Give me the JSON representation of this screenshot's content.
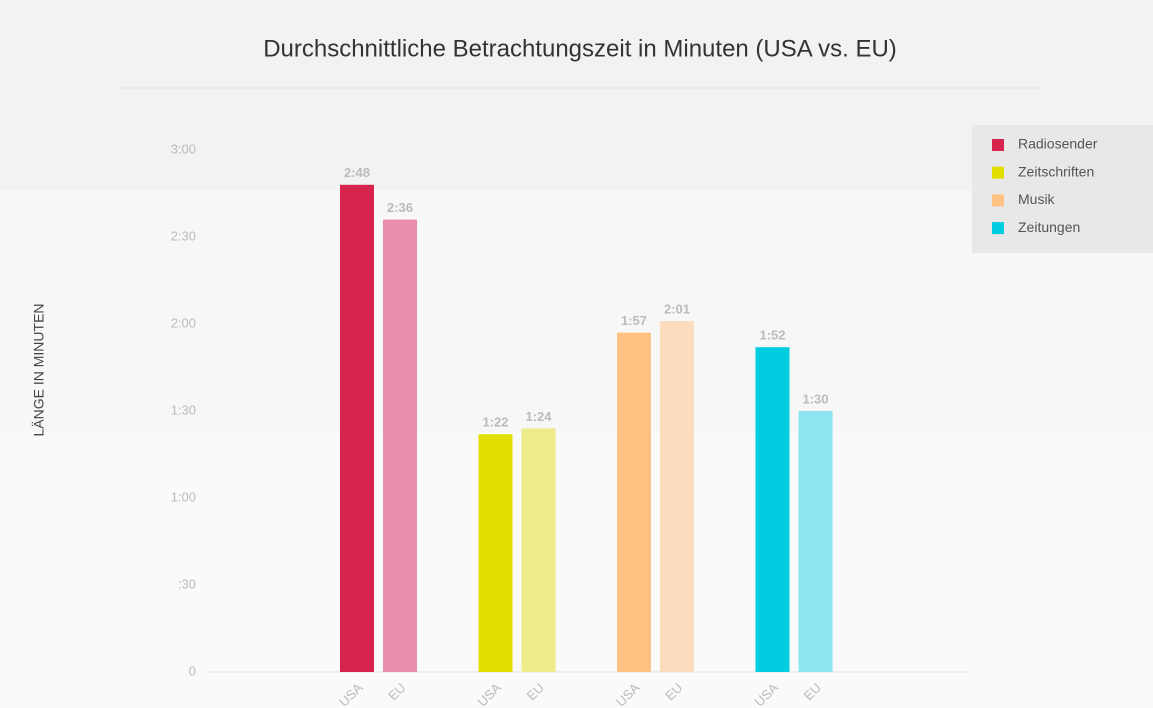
{
  "chart_data": {
    "type": "grouped_bar",
    "title": "Durchschnittliche Betrachtungszeit in Minuten (USA vs. EU)",
    "y_label": "LÄNGE IN MINUTEN",
    "categories": [
      "USA",
      "EU"
    ],
    "series": [
      {
        "name": "Radiosender",
        "colors": [
          "#d6244f",
          "#e88eab"
        ],
        "values": [
          168,
          156
        ],
        "value_labels": [
          "2:48",
          "2:36"
        ]
      },
      {
        "name": "Zeitschriften",
        "colors": [
          "#e2de00",
          "#eeeb8a"
        ],
        "values": [
          82,
          84
        ],
        "value_labels": [
          "1:22",
          "1:24"
        ]
      },
      {
        "name": "Musik",
        "colors": [
          "#ffc283",
          "#fcdcbc"
        ],
        "values": [
          117,
          121
        ],
        "value_labels": [
          "1:57",
          "2:01"
        ]
      },
      {
        "name": "Zeitungen",
        "colors": [
          "#00cde0",
          "#8ee4ef"
        ],
        "values": [
          112,
          90
        ],
        "value_labels": [
          "1:52",
          "1:30"
        ]
      }
    ],
    "ylim": [
      0,
      180
    ],
    "yticks": [
      0,
      {
        "value": 30,
        "label": ":30"
      },
      {
        "value": 60,
        "label": "1:00"
      },
      {
        "value": 90,
        "label": "1:30"
      },
      {
        "value": 120,
        "label": "2:00"
      },
      {
        "value": 150,
        "label": "2:30"
      },
      {
        "value": 180,
        "label": "3:00"
      }
    ],
    "grid": false,
    "legend": "top-right"
  }
}
